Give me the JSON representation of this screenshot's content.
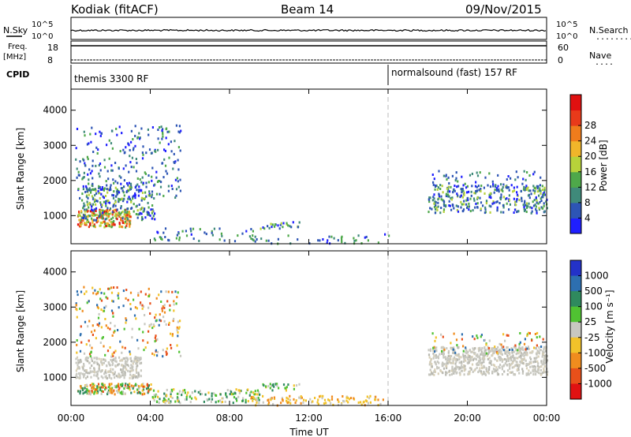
{
  "header": {
    "station": "Kodiak (fitACF)",
    "beam": "Beam 14",
    "date": "09/Nov/2015"
  },
  "top_panels": {
    "nsky_label": "N.Sky",
    "nsearch_label": "N.Search",
    "nsearch_dots": "........",
    "noise_ticks_left": [
      "10^5",
      "10^0"
    ],
    "noise_ticks_right": [
      "10^5",
      "10^0"
    ],
    "freq_label": "Freq.",
    "freq_unit": "[MHz]",
    "freq_ticks": [
      "18",
      "8"
    ],
    "nave_label": "Nave",
    "nave_dots": "....",
    "nave_ticks": [
      "60",
      "0"
    ],
    "cpid_label": "CPID",
    "cpid_segments": [
      {
        "label": "themis 3300 RF",
        "start_hour": 0,
        "end_hour": 16
      },
      {
        "label": "normalsound (fast) 157 RF",
        "start_hour": 16,
        "end_hour": 24
      }
    ]
  },
  "chart_data": [
    {
      "type": "heatmap",
      "name": "power",
      "ylabel": "Slant Range [km]",
      "ylim": [
        200,
        4600
      ],
      "yticks": [
        "1000",
        "2000",
        "3000",
        "4000"
      ],
      "xlim": [
        0,
        24
      ],
      "colorbar_label": "Power [dB]",
      "colorbar_ticks": [
        "4",
        "8",
        "12",
        "16",
        "20",
        "24",
        "28"
      ],
      "colorbar_colors": [
        "#1f1fff",
        "#2d55b5",
        "#3f8a7a",
        "#4ea84a",
        "#b7d23a",
        "#f0b52a",
        "#ef7c1c",
        "#e83a1a",
        "#e01010"
      ],
      "echo_regions": [
        {
          "t0": 0.3,
          "t1": 3.0,
          "r0": 700,
          "r1": 1200,
          "level": "high"
        },
        {
          "t0": 0.5,
          "t1": 4.2,
          "r0": 900,
          "r1": 1900,
          "level": "mid"
        },
        {
          "t0": 0.2,
          "t1": 5.5,
          "r0": 1500,
          "r1": 3600,
          "level": "low"
        },
        {
          "t0": 4.0,
          "t1": 9.5,
          "r0": 300,
          "r1": 700,
          "level": "low"
        },
        {
          "t0": 9.5,
          "t1": 11.5,
          "r0": 650,
          "r1": 850,
          "level": "mid"
        },
        {
          "t0": 9.0,
          "t1": 16.0,
          "r0": 230,
          "r1": 500,
          "level": "low"
        },
        {
          "t0": 18.0,
          "t1": 24.0,
          "r0": 1100,
          "r1": 1900,
          "level": "mid"
        },
        {
          "t0": 18.2,
          "t1": 23.8,
          "r0": 1700,
          "r1": 2300,
          "level": "low"
        }
      ]
    },
    {
      "type": "heatmap",
      "name": "velocity",
      "ylabel": "Slant Range [km]",
      "ylim": [
        200,
        4600
      ],
      "yticks": [
        "1000",
        "2000",
        "3000",
        "4000"
      ],
      "xlabel": "Time UT",
      "xticks": [
        "00:00",
        "04:00",
        "08:00",
        "12:00",
        "16:00",
        "20:00",
        "00:00"
      ],
      "xlim": [
        0,
        24
      ],
      "colorbar_label": "Velocity [m s⁻¹]",
      "colorbar_ticks": [
        "1000",
        "500",
        "100",
        "25",
        "-25",
        "-100",
        "-500",
        "-1000"
      ],
      "colorbar_colors": [
        "#2332c8",
        "#2d6fb0",
        "#2f8a5e",
        "#50c232",
        "#c8c8c0",
        "#f2c22a",
        "#f08c1e",
        "#e8501a",
        "#e01212"
      ],
      "echo_regions": [
        {
          "t0": 0.3,
          "t1": 4.0,
          "r0": 550,
          "r1": 850,
          "level": "mixed"
        },
        {
          "t0": 0.2,
          "t1": 3.5,
          "r0": 1000,
          "r1": 1600,
          "level": "ground"
        },
        {
          "t0": 0.2,
          "t1": 5.5,
          "r0": 1600,
          "r1": 3600,
          "level": "sparse"
        },
        {
          "t0": 4.0,
          "t1": 9.5,
          "r0": 300,
          "r1": 700,
          "level": "green"
        },
        {
          "t0": 9.5,
          "t1": 11.5,
          "r0": 650,
          "r1": 850,
          "level": "green"
        },
        {
          "t0": 9.0,
          "t1": 16.0,
          "r0": 230,
          "r1": 500,
          "level": "orange"
        },
        {
          "t0": 18.0,
          "t1": 24.0,
          "r0": 1100,
          "r1": 1900,
          "level": "ground"
        },
        {
          "t0": 18.2,
          "t1": 23.8,
          "r0": 1700,
          "r1": 2300,
          "level": "sparse"
        }
      ]
    }
  ]
}
